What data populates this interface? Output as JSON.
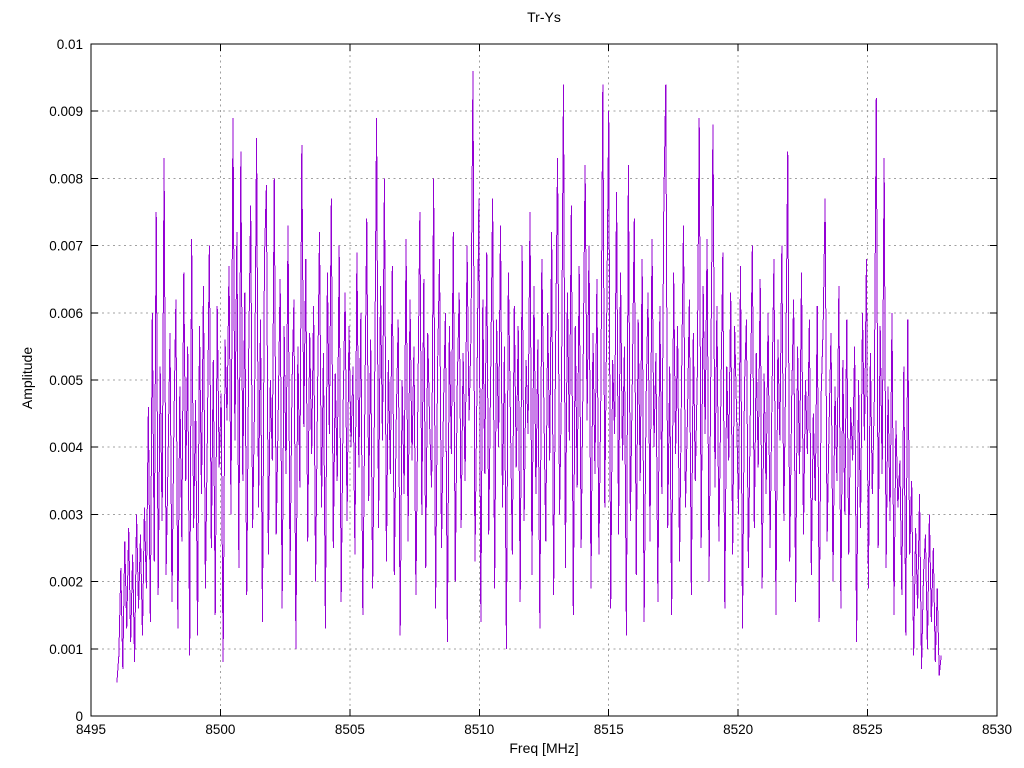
{
  "title": "Tr-Ys",
  "colors": {
    "line": "#9400d3",
    "grid": "#a0a0a0",
    "frame": "#000000",
    "background": "#ffffff",
    "text": "#000000"
  },
  "chart_data": {
    "type": "line",
    "title": "Tr-Ys",
    "xlabel": "Freq [MHz]",
    "ylabel": "Amplitude",
    "xlim": [
      8495,
      8530
    ],
    "ylim": [
      0,
      0.01
    ],
    "grid": true,
    "grid_style": "dotted",
    "legend": "none",
    "x_ticks": [
      8495,
      8500,
      8505,
      8510,
      8515,
      8520,
      8525,
      8530
    ],
    "x_tick_labels": [
      "8495",
      "8500",
      "8505",
      "8510",
      "8515",
      "8520",
      "8525",
      "8530"
    ],
    "y_ticks": [
      0,
      0.001,
      0.002,
      0.003,
      0.004,
      0.005,
      0.006,
      0.007,
      0.008,
      0.009,
      0.01
    ],
    "y_tick_labels": [
      "0",
      "0.001",
      "0.002",
      "0.003",
      "0.004",
      "0.005",
      "0.006",
      "0.007",
      "0.008",
      "0.009",
      "0.01"
    ],
    "series_name": "Tr-Ys",
    "x_start": 8496.0,
    "x_step": 0.076,
    "values_scale": 0.0001,
    "values": [
      5,
      9,
      22,
      7,
      26,
      13,
      28,
      11,
      24,
      8,
      30,
      16,
      27,
      12,
      31,
      19,
      46,
      14,
      60,
      23,
      75,
      18,
      52,
      29,
      83,
      21,
      38,
      57,
      17,
      44,
      62,
      13,
      49,
      26,
      66,
      35,
      55,
      9,
      71,
      28,
      47,
      12,
      58,
      33,
      64,
      19,
      42,
      70,
      25,
      53,
      15,
      61,
      37,
      48,
      8,
      56,
      44,
      67,
      30,
      89,
      41,
      72,
      22,
      84,
      35,
      63,
      18,
      54,
      76,
      28,
      47,
      86,
      31,
      59,
      14,
      68,
      79,
      24,
      50,
      38,
      80,
      27,
      45,
      65,
      16,
      58,
      36,
      73,
      21,
      49,
      62,
      10,
      55,
      34,
      85,
      43,
      68,
      26,
      57,
      39,
      61,
      20,
      48,
      72,
      31,
      54,
      13,
      66,
      42,
      77,
      25,
      51,
      35,
      70,
      17,
      46,
      63,
      29,
      58,
      40,
      52,
      24,
      69,
      37,
      60,
      15,
      45,
      74,
      32,
      56,
      19,
      48,
      89,
      28,
      64,
      41,
      80,
      23,
      53,
      36,
      67,
      21,
      44,
      59,
      12,
      50,
      33,
      71,
      26,
      62,
      38,
      55,
      18,
      47,
      75,
      30,
      65,
      22,
      57,
      43,
      34,
      80,
      16,
      52,
      68,
      25,
      46,
      60,
      11,
      58,
      39,
      72,
      20,
      49,
      63,
      28,
      54,
      35,
      70,
      44,
      57,
      96,
      23,
      48,
      77,
      14,
      62,
      36,
      69,
      27,
      51,
      77,
      19,
      59,
      40,
      73,
      31,
      55,
      10,
      66,
      45,
      24,
      61,
      37,
      58,
      17,
      70,
      29,
      53,
      42,
      75,
      21,
      64,
      33,
      56,
      13,
      68,
      47,
      26,
      60,
      38,
      72,
      18,
      55,
      83,
      30,
      49,
      94,
      22,
      63,
      41,
      76,
      15,
      58,
      34,
      67,
      25,
      52,
      82,
      44,
      70,
      19,
      57,
      36,
      65,
      24,
      48,
      94,
      31,
      60,
      90,
      16,
      53,
      42,
      78,
      27,
      66,
      38,
      55,
      12,
      82,
      29,
      50,
      74,
      21,
      59,
      35,
      68,
      14,
      47,
      63,
      26,
      71,
      40,
      54,
      17,
      61,
      33,
      76,
      94,
      28,
      52,
      15,
      66,
      39,
      58,
      23,
      49,
      73,
      31,
      44,
      62,
      18,
      57,
      35,
      50,
      89,
      25,
      64,
      42,
      71,
      20,
      55,
      88,
      34,
      61,
      26,
      47,
      69,
      16,
      52,
      38,
      63,
      24,
      58,
      45,
      30,
      67,
      13,
      49,
      59,
      22,
      46,
      70,
      28,
      54,
      37,
      65,
      19,
      51,
      33,
      60,
      25,
      48,
      68,
      15,
      56,
      41,
      70,
      29,
      52,
      84,
      23,
      47,
      62,
      17,
      55,
      36,
      66,
      27,
      50,
      39,
      59,
      21,
      45,
      32,
      61,
      14,
      48,
      58,
      77,
      26,
      43,
      57,
      20,
      49,
      35,
      64,
      16,
      53,
      30,
      59,
      24,
      46,
      38,
      55,
      11,
      50,
      28,
      60,
      41,
      68,
      19,
      54,
      33,
      47,
      92,
      25,
      58,
      36,
      83,
      22,
      49,
      29,
      60,
      15,
      44,
      31,
      38,
      18,
      52,
      12,
      59,
      24,
      35,
      9,
      28,
      16,
      33,
      7,
      21,
      27,
      10,
      30,
      14,
      25,
      8,
      19,
      6,
      9
    ]
  }
}
